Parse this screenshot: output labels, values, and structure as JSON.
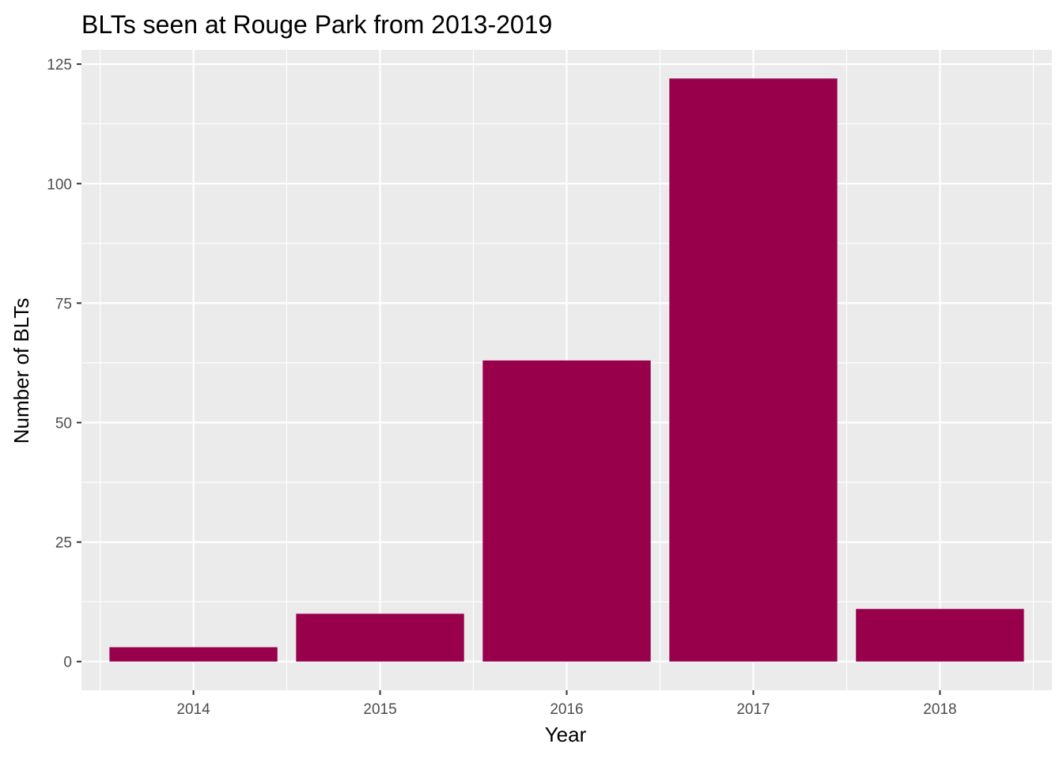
{
  "chart_data": {
    "type": "bar",
    "title": "BLTs seen at Rouge Park from 2013-2019",
    "xlabel": "Year",
    "ylabel": "Number of BLTs",
    "categories": [
      "2014",
      "2015",
      "2016",
      "2017",
      "2018"
    ],
    "values": [
      3,
      10,
      63,
      122,
      11
    ],
    "ylim": [
      -6,
      128
    ],
    "yticks": [
      0,
      25,
      50,
      75,
      100,
      125
    ],
    "grid": true,
    "legend": "none",
    "colors": {
      "bar": "#99004c",
      "panel": "#ebebeb",
      "grid": "#ffffff"
    }
  }
}
